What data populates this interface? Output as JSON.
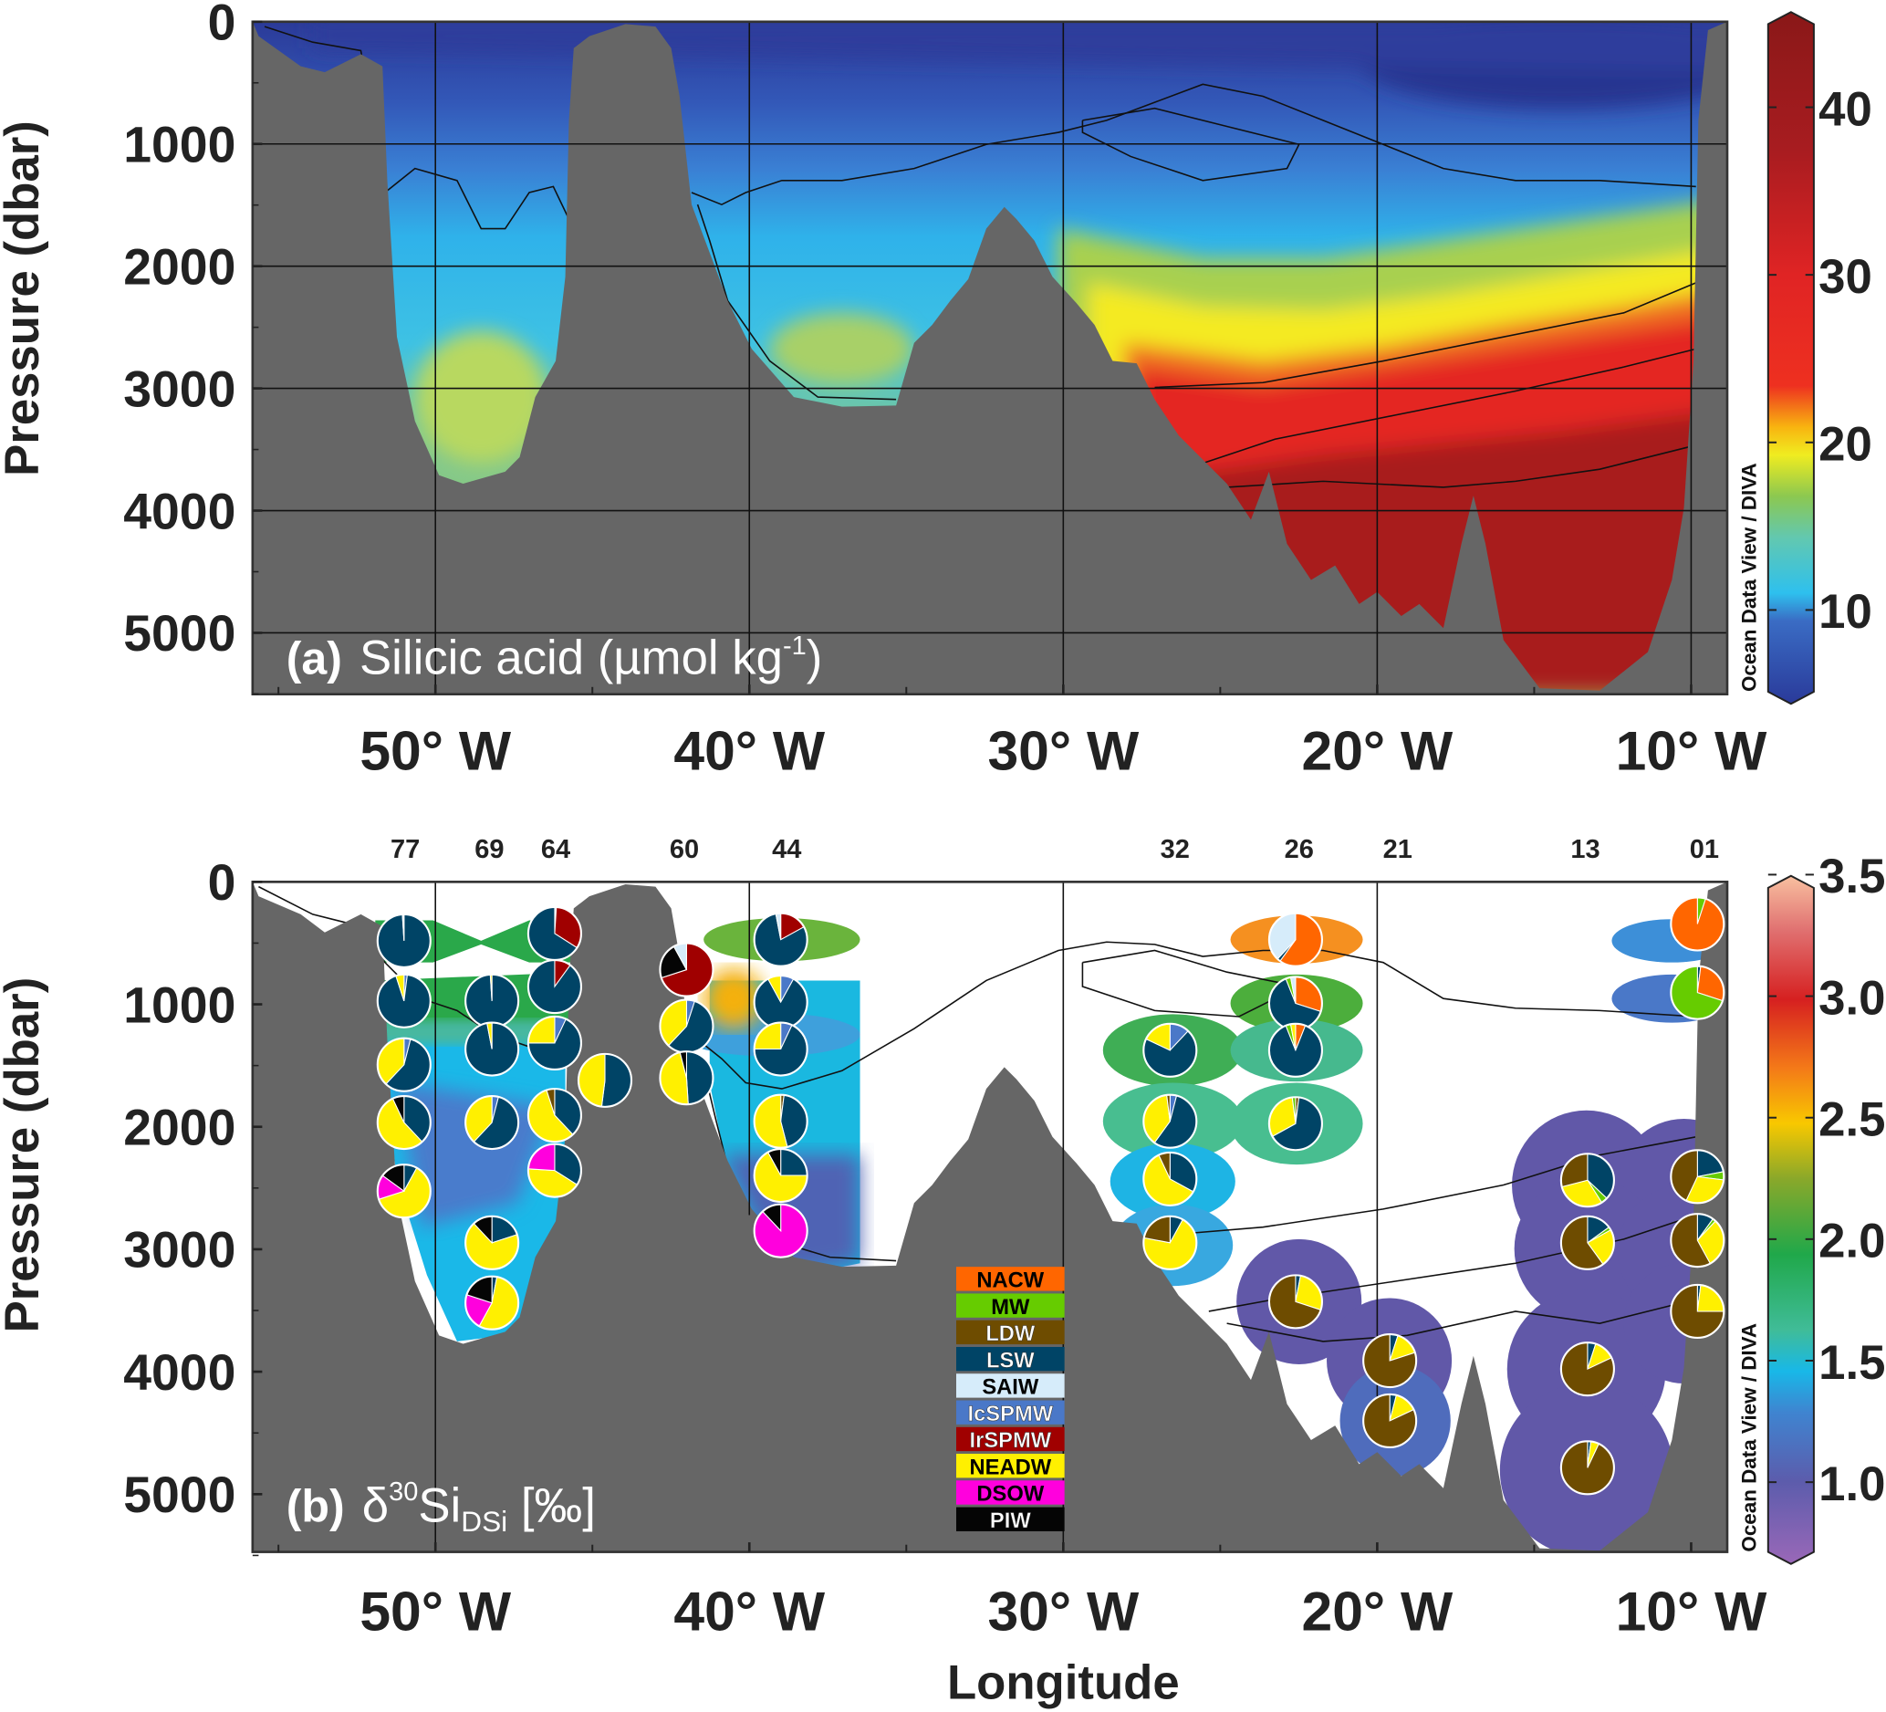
{
  "axes": {
    "ylabel": "Pressure (dbar)",
    "xlabel": "Longitude",
    "pressure_ticks": [
      0,
      1000,
      2000,
      3000,
      4000,
      5000
    ],
    "longitude_ticks": [
      {
        "value": 50,
        "label": "50° W"
      },
      {
        "value": 40,
        "label": "40° W"
      },
      {
        "value": 30,
        "label": "30° W"
      },
      {
        "value": 20,
        "label": "20° W"
      },
      {
        "value": 10,
        "label": "10° W"
      }
    ]
  },
  "credit": "Ocean Data View / DIVA",
  "chart_data": [
    {
      "type": "heatmap",
      "panel": "(a)",
      "title": "Silicic acid (µmol kg",
      "title_sup": "-1",
      "title_end": ")",
      "xlabel": "Longitude",
      "ylabel": "Pressure (dbar)",
      "xlim": [
        55.8,
        8.9
      ],
      "ylim": [
        0,
        5500
      ],
      "colorbar": {
        "range": [
          5,
          45
        ],
        "ticks": [
          10,
          20,
          30,
          40
        ]
      },
      "grid": true
    },
    {
      "type": "heatmap",
      "panel": "(b)",
      "title_main": "δ",
      "title_sup": "30",
      "title_si": "Si",
      "title_sub": "DSi",
      "title_end": " [‰]",
      "xlabel": "Longitude",
      "ylabel": "Pressure (dbar)",
      "xlim": [
        55.8,
        8.9
      ],
      "ylim": [
        0,
        5500
      ],
      "colorbar": {
        "range": [
          0.8,
          3.5
        ],
        "ticks": [
          1.0,
          1.5,
          2.0,
          2.5,
          3.0,
          3.5
        ],
        "labels": [
          "1.0",
          "1.5",
          "2.0",
          "2.5",
          "3.0",
          "3.5"
        ]
      },
      "stations": [
        {
          "label": "77",
          "lon": 50.96
        },
        {
          "label": "69",
          "lon": 48.28
        },
        {
          "label": "64",
          "lon": 46.17
        },
        {
          "label": "60",
          "lon": 42.07
        },
        {
          "label": "44",
          "lon": 38.81
        },
        {
          "label": "32",
          "lon": 26.44
        },
        {
          "label": "26",
          "lon": 22.49
        },
        {
          "label": "21",
          "lon": 19.35
        },
        {
          "label": "13",
          "lon": 13.37
        },
        {
          "label": "01",
          "lon": 9.58
        }
      ],
      "legend": [
        {
          "label": "NACW",
          "color": "#ff6600",
          "text": "#000"
        },
        {
          "label": "MW",
          "color": "#66cc00",
          "text": "#000"
        },
        {
          "label": "LDW",
          "color": "#6e4c00",
          "text": "#fff"
        },
        {
          "label": "LSW",
          "color": "#004466",
          "text": "#fff"
        },
        {
          "label": "SAIW",
          "color": "#d6ecfa",
          "text": "#000"
        },
        {
          "label": "IcSPMW",
          "color": "#4a78c8",
          "text": "#fff"
        },
        {
          "label": "IrSPMW",
          "color": "#a00000",
          "text": "#fff"
        },
        {
          "label": "NEADW",
          "color": "#fff000",
          "text": "#000"
        },
        {
          "label": "DSOW",
          "color": "#ff00dd",
          "text": "#000"
        },
        {
          "label": "PIW",
          "color": "#050505",
          "text": "#fff"
        }
      ],
      "pies": [
        {
          "station": "77",
          "lon": 51.0,
          "p": 481,
          "seg": [
            [
              "LSW",
              0.99
            ],
            [
              "SAIW",
              0.01
            ]
          ]
        },
        {
          "station": "77",
          "lon": 51.0,
          "p": 972,
          "seg": [
            [
              "IcSPMW",
              0.02
            ],
            [
              "LSW",
              0.93
            ],
            [
              "NEADW",
              0.05
            ]
          ]
        },
        {
          "station": "77",
          "lon": 51.0,
          "p": 1493,
          "seg": [
            [
              "IcSPMW",
              0.04
            ],
            [
              "LSW",
              0.58
            ],
            [
              "NEADW",
              0.38
            ]
          ]
        },
        {
          "station": "77",
          "lon": 51.0,
          "p": 1965,
          "seg": [
            [
              "LSW",
              0.38
            ],
            [
              "NEADW",
              0.55
            ],
            [
              "PIW",
              0.07
            ]
          ]
        },
        {
          "station": "77",
          "lon": 51.0,
          "p": 2525,
          "seg": [
            [
              "LSW",
              0.08
            ],
            [
              "NEADW",
              0.62
            ],
            [
              "DSOW",
              0.15
            ],
            [
              "PIW",
              0.15
            ]
          ]
        },
        {
          "station": "69",
          "lon": 48.2,
          "p": 972,
          "seg": [
            [
              "LSW",
              0.99
            ],
            [
              "NEADW",
              0.01
            ]
          ]
        },
        {
          "station": "69",
          "lon": 48.2,
          "p": 1365,
          "seg": [
            [
              "LSW",
              0.97
            ],
            [
              "NEADW",
              0.03
            ]
          ]
        },
        {
          "station": "69",
          "lon": 48.2,
          "p": 1965,
          "seg": [
            [
              "IcSPMW",
              0.04
            ],
            [
              "LSW",
              0.58
            ],
            [
              "NEADW",
              0.38
            ]
          ]
        },
        {
          "station": "69",
          "lon": 48.2,
          "p": 2947,
          "seg": [
            [
              "LSW",
              0.2
            ],
            [
              "NEADW",
              0.68
            ],
            [
              "PIW",
              0.12
            ]
          ]
        },
        {
          "station": "69",
          "lon": 48.2,
          "p": 3438,
          "seg": [
            [
              "LSW",
              0.03
            ],
            [
              "NEADW",
              0.55
            ],
            [
              "DSOW",
              0.22
            ],
            [
              "PIW",
              0.2
            ]
          ]
        },
        {
          "station": "64",
          "lon": 46.2,
          "p": 422,
          "seg": [
            [
              "SAIW",
              0.01
            ],
            [
              "IrSPMW",
              0.33
            ],
            [
              "LSW",
              0.66
            ]
          ]
        },
        {
          "station": "64",
          "lon": 46.2,
          "p": 855,
          "seg": [
            [
              "IrSPMW",
              0.1
            ],
            [
              "LSW",
              0.9
            ]
          ]
        },
        {
          "station": "64",
          "lon": 46.2,
          "p": 1316,
          "seg": [
            [
              "IcSPMW",
              0.07
            ],
            [
              "LSW",
              0.68
            ],
            [
              "NEADW",
              0.25
            ]
          ]
        },
        {
          "station": "64",
          "lon": 46.2,
          "p": 1906,
          "seg": [
            [
              "LSW",
              0.38
            ],
            [
              "NEADW",
              0.57
            ],
            [
              "LDW",
              0.05
            ]
          ]
        },
        {
          "station": "64",
          "lon": 46.2,
          "p": 2357,
          "seg": [
            [
              "LSW",
              0.34
            ],
            [
              "NEADW",
              0.42
            ],
            [
              "DSOW",
              0.24
            ]
          ]
        },
        {
          "station": "64",
          "lon": 44.6,
          "p": 1621,
          "seg": [
            [
              "LSW",
              0.52
            ],
            [
              "NEADW",
              0.48
            ]
          ]
        },
        {
          "station": "60",
          "lon": 42.0,
          "p": 717,
          "seg": [
            [
              "IrSPMW",
              0.7
            ],
            [
              "PIW",
              0.22
            ],
            [
              "SAIW",
              0.08
            ]
          ]
        },
        {
          "station": "60",
          "lon": 42.0,
          "p": 1179,
          "seg": [
            [
              "IcSPMW",
              0.05
            ],
            [
              "LSW",
              0.57
            ],
            [
              "NEADW",
              0.38
            ]
          ]
        },
        {
          "station": "60",
          "lon": 42.0,
          "p": 1601,
          "seg": [
            [
              "LSW",
              0.49
            ],
            [
              "NEADW",
              0.47
            ],
            [
              "PIW",
              0.04
            ]
          ]
        },
        {
          "station": "44",
          "lon": 39.0,
          "p": 472,
          "seg": [
            [
              "IrSPMW",
              0.17
            ],
            [
              "LSW",
              0.8
            ],
            [
              "SAIW",
              0.03
            ]
          ]
        },
        {
          "station": "44",
          "lon": 39.0,
          "p": 982,
          "seg": [
            [
              "IcSPMW",
              0.08
            ],
            [
              "LSW",
              0.84
            ],
            [
              "NEADW",
              0.08
            ]
          ]
        },
        {
          "station": "44",
          "lon": 39.0,
          "p": 1365,
          "seg": [
            [
              "IcSPMW",
              0.07
            ],
            [
              "LSW",
              0.68
            ],
            [
              "NEADW",
              0.25
            ]
          ]
        },
        {
          "station": "44",
          "lon": 39.0,
          "p": 1955,
          "seg": [
            [
              "LDW",
              0.02
            ],
            [
              "LSW",
              0.44
            ],
            [
              "NEADW",
              0.54
            ]
          ]
        },
        {
          "station": "44",
          "lon": 39.0,
          "p": 2397,
          "seg": [
            [
              "LSW",
              0.25
            ],
            [
              "NEADW",
              0.67
            ],
            [
              "PIW",
              0.08
            ]
          ]
        },
        {
          "station": "44",
          "lon": 39.0,
          "p": 2849,
          "seg": [
            [
              "DSOW",
              0.88
            ],
            [
              "PIW",
              0.12
            ]
          ]
        },
        {
          "station": "32",
          "lon": 26.6,
          "p": 1375,
          "seg": [
            [
              "IcSPMW",
              0.12
            ],
            [
              "LSW",
              0.7
            ],
            [
              "NEADW",
              0.18
            ]
          ]
        },
        {
          "station": "32",
          "lon": 26.6,
          "p": 1955,
          "seg": [
            [
              "IcSPMW",
              0.04
            ],
            [
              "LSW",
              0.56
            ],
            [
              "NEADW",
              0.38
            ],
            [
              "LDW",
              0.02
            ]
          ]
        },
        {
          "station": "32",
          "lon": 26.6,
          "p": 2426,
          "seg": [
            [
              "LSW",
              0.33
            ],
            [
              "NEADW",
              0.6
            ],
            [
              "LDW",
              0.07
            ]
          ]
        },
        {
          "station": "32",
          "lon": 26.6,
          "p": 2947,
          "seg": [
            [
              "LSW",
              0.08
            ],
            [
              "NEADW",
              0.7
            ],
            [
              "LDW",
              0.22
            ]
          ]
        },
        {
          "station": "26",
          "lon": 22.6,
          "p": 472,
          "seg": [
            [
              "NACW",
              0.6
            ],
            [
              "LSW",
              0.02
            ],
            [
              "SAIW",
              0.38
            ]
          ]
        },
        {
          "station": "26",
          "lon": 22.6,
          "p": 992,
          "seg": [
            [
              "NACW",
              0.3
            ],
            [
              "LSW",
              0.64
            ],
            [
              "MW",
              0.03
            ],
            [
              "SAIW",
              0.03
            ]
          ]
        },
        {
          "station": "26",
          "lon": 22.6,
          "p": 1375,
          "seg": [
            [
              "NACW",
              0.06
            ],
            [
              "LSW",
              0.88
            ],
            [
              "MW",
              0.03
            ],
            [
              "NEADW",
              0.03
            ]
          ]
        },
        {
          "station": "26",
          "lon": 22.6,
          "p": 1974,
          "seg": [
            [
              "LDW",
              0.02
            ],
            [
              "LSW",
              0.65
            ],
            [
              "NEADW",
              0.31
            ],
            [
              "MW",
              0.02
            ]
          ]
        },
        {
          "station": "26",
          "lon": 22.6,
          "p": 3428,
          "seg": [
            [
              "LSW",
              0.03
            ],
            [
              "NEADW",
              0.27
            ],
            [
              "LDW",
              0.7
            ]
          ]
        },
        {
          "station": "21",
          "lon": 19.6,
          "p": 3910,
          "seg": [
            [
              "LSW",
              0.05
            ],
            [
              "NEADW",
              0.15
            ],
            [
              "LDW",
              0.8
            ]
          ]
        },
        {
          "station": "21",
          "lon": 19.6,
          "p": 4401,
          "seg": [
            [
              "LSW",
              0.04
            ],
            [
              "NEADW",
              0.14
            ],
            [
              "LDW",
              0.82
            ]
          ]
        },
        {
          "station": "13",
          "lon": 13.3,
          "p": 2436,
          "seg": [
            [
              "LSW",
              0.37
            ],
            [
              "MW",
              0.04
            ],
            [
              "NEADW",
              0.3
            ],
            [
              "LDW",
              0.29
            ]
          ]
        },
        {
          "station": "13",
          "lon": 13.3,
          "p": 2947,
          "seg": [
            [
              "LSW",
              0.15
            ],
            [
              "MW",
              0.02
            ],
            [
              "NEADW",
              0.23
            ],
            [
              "LDW",
              0.6
            ]
          ]
        },
        {
          "station": "13",
          "lon": 13.3,
          "p": 3978,
          "seg": [
            [
              "LSW",
              0.05
            ],
            [
              "NEADW",
              0.13
            ],
            [
              "LDW",
              0.82
            ]
          ]
        },
        {
          "station": "13",
          "lon": 13.3,
          "p": 4784,
          "seg": [
            [
              "LSW",
              0.02
            ],
            [
              "NEADW",
              0.05
            ],
            [
              "LDW",
              0.93
            ]
          ]
        },
        {
          "station": "01",
          "lon": 9.8,
          "p": 344,
          "seg": [
            [
              "MW",
              0.05
            ],
            [
              "NACW",
              0.95
            ]
          ]
        },
        {
          "station": "01",
          "lon": 9.8,
          "p": 904,
          "seg": [
            [
              "LSW",
              0.02
            ],
            [
              "NACW",
              0.28
            ],
            [
              "MW",
              0.7
            ]
          ]
        },
        {
          "station": "01",
          "lon": 9.8,
          "p": 2407,
          "seg": [
            [
              "LSW",
              0.22
            ],
            [
              "MW",
              0.05
            ],
            [
              "NEADW",
              0.3
            ],
            [
              "LDW",
              0.43
            ]
          ]
        },
        {
          "station": "01",
          "lon": 9.8,
          "p": 2927,
          "seg": [
            [
              "LSW",
              0.1
            ],
            [
              "MW",
              0.02
            ],
            [
              "NEADW",
              0.3
            ],
            [
              "LDW",
              0.58
            ]
          ]
        },
        {
          "station": "01",
          "lon": 9.8,
          "p": 3507,
          "seg": [
            [
              "LSW",
              0.02
            ],
            [
              "NEADW",
              0.23
            ],
            [
              "LDW",
              0.75
            ]
          ]
        }
      ]
    }
  ]
}
